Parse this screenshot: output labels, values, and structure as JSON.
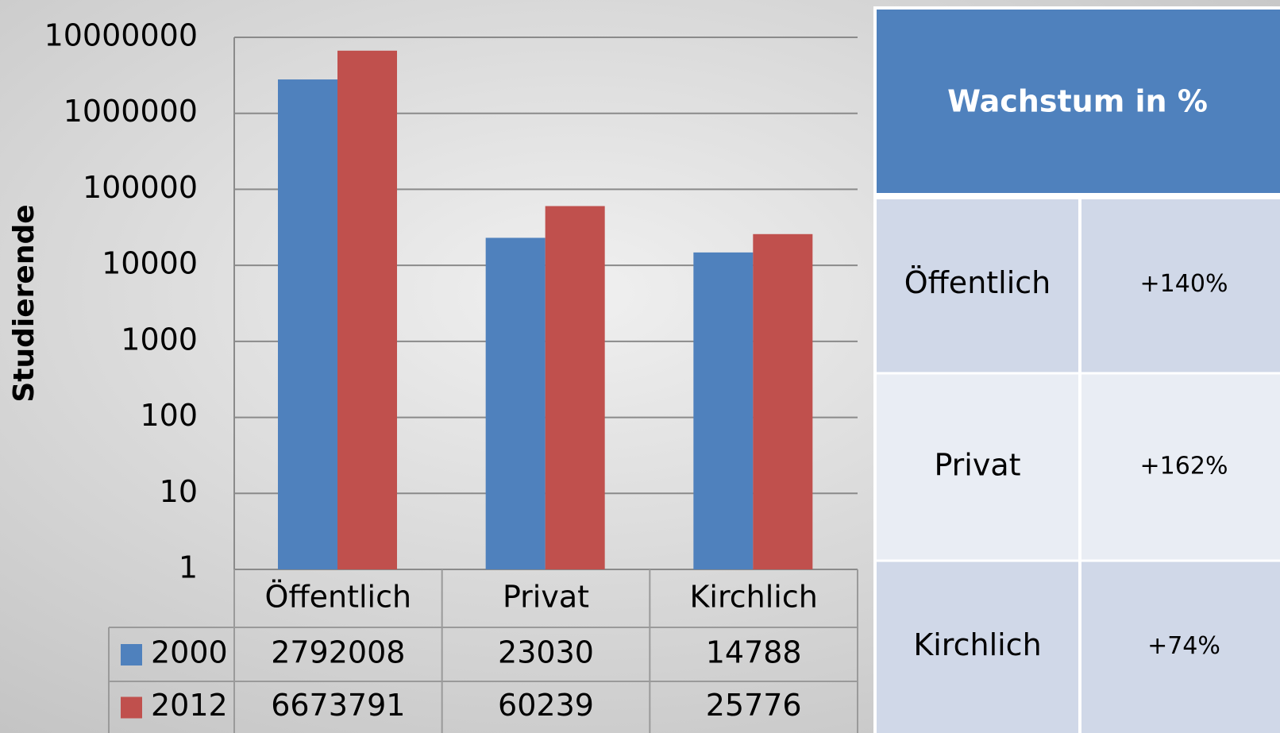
{
  "chart_data": {
    "type": "bar",
    "y_label": "Studierende",
    "categories": [
      "Öffentlich",
      "Privat",
      "Kirchlich"
    ],
    "series": [
      {
        "name": "2000",
        "color": "#4f81bd",
        "values": [
          2792008,
          23030,
          14788
        ]
      },
      {
        "name": "2012",
        "color": "#c0504d",
        "values": [
          6673791,
          60239,
          25776
        ]
      }
    ],
    "log_scale": true,
    "ylim": [
      1,
      10000000
    ],
    "yticks": [
      1,
      10,
      100,
      1000,
      10000,
      100000,
      1000000,
      10000000
    ],
    "grid": true
  },
  "growth_table": {
    "title": "Wachstum in %",
    "rows": [
      [
        "Öffentlich",
        "+140%"
      ],
      [
        "Privat",
        "+162%"
      ],
      [
        "Kirchlich",
        "+74%"
      ]
    ]
  }
}
